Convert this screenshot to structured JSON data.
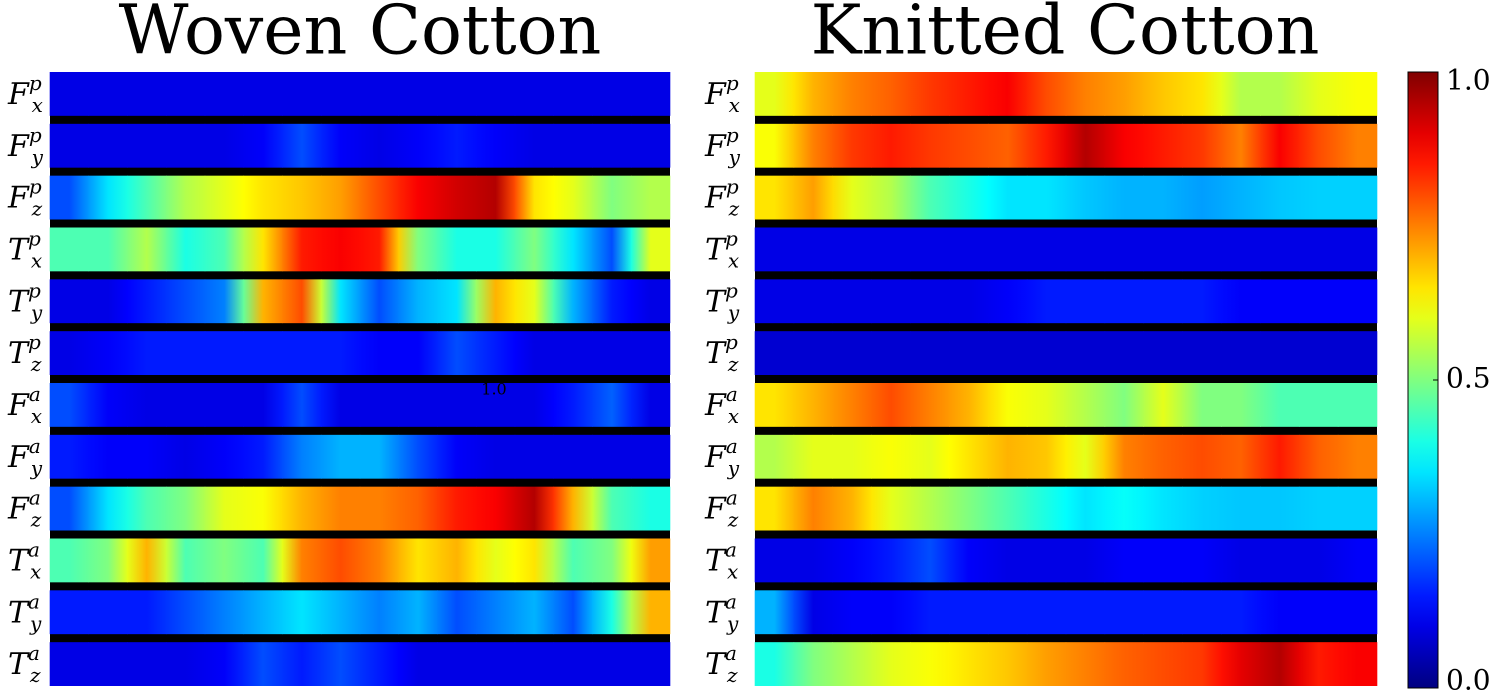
{
  "chart_data": [
    {
      "type": "heatmap",
      "title": "Woven Cotton",
      "colormap": "jet",
      "clim": [
        0,
        1
      ],
      "annotation": "1.0",
      "rows": [
        {
          "symbol": "F",
          "sub": "x",
          "sup": "p"
        },
        {
          "symbol": "F",
          "sub": "y",
          "sup": "p"
        },
        {
          "symbol": "F",
          "sub": "z",
          "sup": "p"
        },
        {
          "symbol": "T",
          "sub": "x",
          "sup": "p"
        },
        {
          "symbol": "T",
          "sub": "y",
          "sup": "p"
        },
        {
          "symbol": "T",
          "sub": "z",
          "sup": "p"
        },
        {
          "symbol": "F",
          "sub": "x",
          "sup": "a"
        },
        {
          "symbol": "F",
          "sub": "y",
          "sup": "a"
        },
        {
          "symbol": "F",
          "sub": "z",
          "sup": "a"
        },
        {
          "symbol": "T",
          "sub": "x",
          "sup": "a"
        },
        {
          "symbol": "T",
          "sub": "y",
          "sup": "a"
        },
        {
          "symbol": "T",
          "sub": "z",
          "sup": "a"
        }
      ],
      "values": [
        [
          0.1,
          0.1,
          0.1,
          0.1,
          0.1,
          0.1,
          0.1,
          0.1,
          0.1,
          0.1,
          0.1,
          0.1,
          0.1,
          0.1,
          0.1,
          0.1
        ],
        [
          0.1,
          0.1,
          0.1,
          0.1,
          0.1,
          0.12,
          0.2,
          0.12,
          0.1,
          0.12,
          0.15,
          0.12,
          0.1,
          0.1,
          0.1,
          0.1
        ],
        [
          0.2,
          0.35,
          0.45,
          0.55,
          0.6,
          0.65,
          0.68,
          0.72,
          0.8,
          0.88,
          0.92,
          0.95,
          0.65,
          0.6,
          0.5,
          0.55
        ],
        [
          0.45,
          0.45,
          0.55,
          0.4,
          0.45,
          0.65,
          0.85,
          0.88,
          0.85,
          0.5,
          0.4,
          0.4,
          0.5,
          0.35,
          0.2,
          0.6
        ],
        [
          0.1,
          0.1,
          0.15,
          0.2,
          0.25,
          0.7,
          0.8,
          0.35,
          0.2,
          0.3,
          0.35,
          0.7,
          0.6,
          0.3,
          0.15,
          0.1
        ],
        [
          0.1,
          0.12,
          0.15,
          0.15,
          0.15,
          0.15,
          0.15,
          0.15,
          0.12,
          0.12,
          0.2,
          0.15,
          0.1,
          0.1,
          0.1,
          0.1
        ],
        [
          0.2,
          0.12,
          0.1,
          0.1,
          0.1,
          0.1,
          0.2,
          0.1,
          0.1,
          0.1,
          0.1,
          0.1,
          0.1,
          0.15,
          0.22,
          0.1
        ],
        [
          0.15,
          0.12,
          0.12,
          0.1,
          0.12,
          0.15,
          0.25,
          0.3,
          0.3,
          0.2,
          0.12,
          0.1,
          0.1,
          0.1,
          0.1,
          0.1
        ],
        [
          0.2,
          0.35,
          0.45,
          0.5,
          0.6,
          0.62,
          0.7,
          0.75,
          0.75,
          0.78,
          0.85,
          0.88,
          0.95,
          0.7,
          0.45,
          0.4
        ],
        [
          0.45,
          0.5,
          0.7,
          0.45,
          0.5,
          0.45,
          0.75,
          0.8,
          0.75,
          0.65,
          0.7,
          0.6,
          0.65,
          0.45,
          0.5,
          0.72
        ],
        [
          0.15,
          0.15,
          0.15,
          0.2,
          0.25,
          0.3,
          0.35,
          0.3,
          0.25,
          0.3,
          0.2,
          0.25,
          0.3,
          0.2,
          0.4,
          0.7
        ],
        [
          0.1,
          0.1,
          0.1,
          0.1,
          0.12,
          0.2,
          0.15,
          0.2,
          0.15,
          0.1,
          0.1,
          0.1,
          0.1,
          0.1,
          0.1,
          0.1
        ]
      ]
    },
    {
      "type": "heatmap",
      "title": "Knitted Cotton",
      "colormap": "jet",
      "clim": [
        0,
        1
      ],
      "cticks": [
        {
          "value": 0,
          "label": "0.0"
        },
        0.5,
        {
          "value": 1,
          "label": "1.0"
        }
      ],
      "rows": [
        {
          "symbol": "F",
          "sub": "x",
          "sup": "p"
        },
        {
          "symbol": "F",
          "sub": "y",
          "sup": "p"
        },
        {
          "symbol": "F",
          "sub": "z",
          "sup": "p"
        },
        {
          "symbol": "T",
          "sub": "x",
          "sup": "p"
        },
        {
          "symbol": "T",
          "sub": "y",
          "sup": "p"
        },
        {
          "symbol": "T",
          "sub": "z",
          "sup": "p"
        },
        {
          "symbol": "F",
          "sub": "x",
          "sup": "a"
        },
        {
          "symbol": "F",
          "sub": "y",
          "sup": "a"
        },
        {
          "symbol": "F",
          "sub": "z",
          "sup": "a"
        },
        {
          "symbol": "T",
          "sub": "x",
          "sup": "a"
        },
        {
          "symbol": "T",
          "sub": "y",
          "sup": "a"
        },
        {
          "symbol": "T",
          "sub": "z",
          "sup": "a"
        }
      ],
      "values": [
        [
          0.6,
          0.7,
          0.75,
          0.78,
          0.82,
          0.85,
          0.88,
          0.8,
          0.75,
          0.72,
          0.68,
          0.65,
          0.55,
          0.55,
          0.6,
          0.62
        ],
        [
          0.62,
          0.75,
          0.82,
          0.85,
          0.82,
          0.8,
          0.78,
          0.85,
          0.95,
          0.88,
          0.85,
          0.82,
          0.75,
          0.88,
          0.8,
          0.75
        ],
        [
          0.65,
          0.72,
          0.6,
          0.55,
          0.45,
          0.4,
          0.35,
          0.35,
          0.32,
          0.3,
          0.3,
          0.28,
          0.3,
          0.32,
          0.33,
          0.33
        ],
        [
          0.1,
          0.1,
          0.1,
          0.1,
          0.1,
          0.1,
          0.1,
          0.1,
          0.1,
          0.1,
          0.1,
          0.1,
          0.1,
          0.1,
          0.1,
          0.1
        ],
        [
          0.1,
          0.1,
          0.1,
          0.1,
          0.1,
          0.1,
          0.12,
          0.15,
          0.15,
          0.15,
          0.15,
          0.15,
          0.12,
          0.12,
          0.12,
          0.12
        ],
        [
          0.08,
          0.08,
          0.08,
          0.08,
          0.08,
          0.08,
          0.08,
          0.08,
          0.08,
          0.08,
          0.08,
          0.08,
          0.08,
          0.08,
          0.08,
          0.08
        ],
        [
          0.65,
          0.7,
          0.75,
          0.8,
          0.75,
          0.7,
          0.62,
          0.6,
          0.55,
          0.5,
          0.6,
          0.5,
          0.5,
          0.45,
          0.45,
          0.45
        ],
        [
          0.55,
          0.6,
          0.6,
          0.62,
          0.6,
          0.65,
          0.7,
          0.68,
          0.6,
          0.75,
          0.78,
          0.8,
          0.78,
          0.85,
          0.78,
          0.75
        ],
        [
          0.65,
          0.75,
          0.7,
          0.6,
          0.55,
          0.5,
          0.45,
          0.4,
          0.35,
          0.38,
          0.35,
          0.33,
          0.32,
          0.32,
          0.33,
          0.33
        ],
        [
          0.1,
          0.1,
          0.12,
          0.15,
          0.2,
          0.12,
          0.1,
          0.1,
          0.1,
          0.12,
          0.12,
          0.12,
          0.1,
          0.1,
          0.1,
          0.12
        ],
        [
          0.3,
          0.1,
          0.12,
          0.12,
          0.15,
          0.15,
          0.15,
          0.15,
          0.15,
          0.15,
          0.15,
          0.15,
          0.15,
          0.12,
          0.12,
          0.12
        ],
        [
          0.4,
          0.5,
          0.55,
          0.6,
          0.62,
          0.65,
          0.68,
          0.72,
          0.75,
          0.78,
          0.8,
          0.82,
          0.9,
          0.95,
          0.85,
          0.88
        ]
      ]
    }
  ]
}
